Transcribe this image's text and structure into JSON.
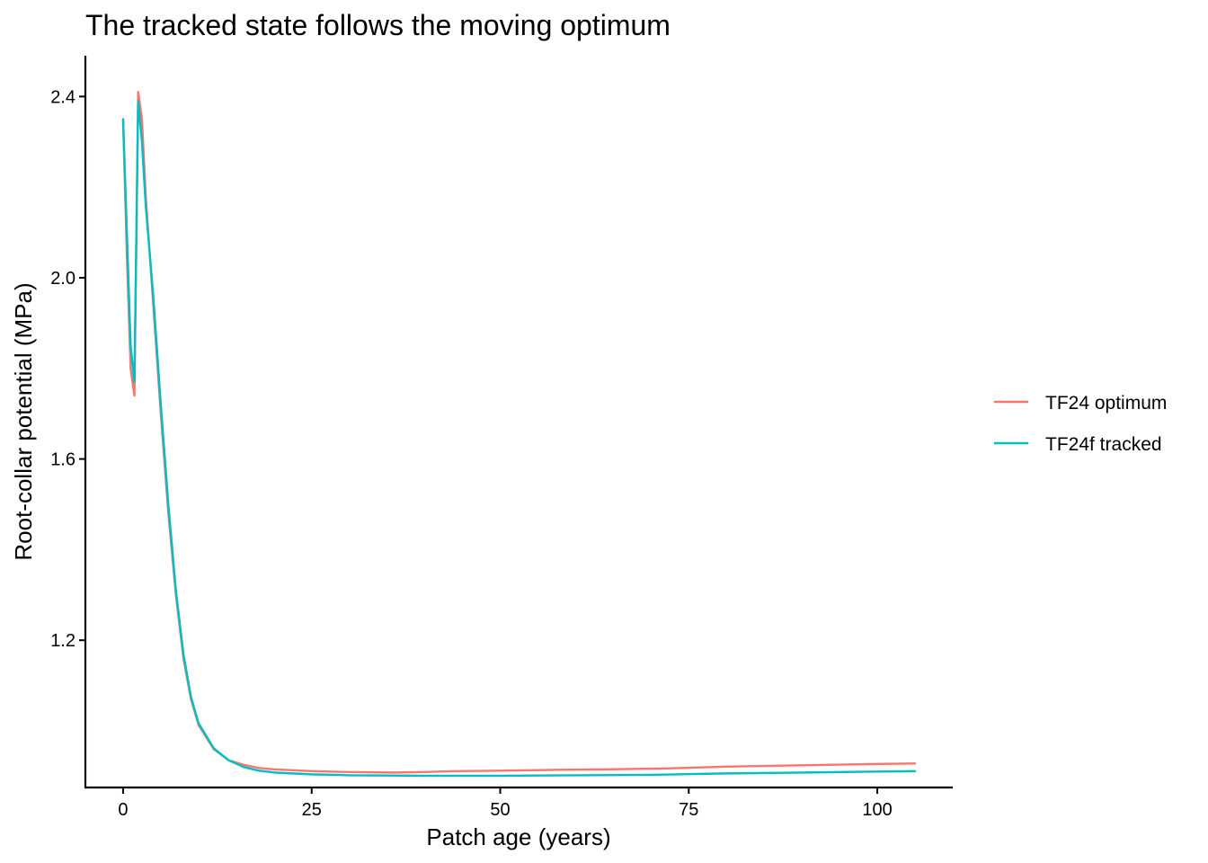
{
  "chart_data": {
    "type": "line",
    "title": "The tracked state follows the moving optimum",
    "xlabel": "Patch age (years)",
    "ylabel": "Root-collar potential (MPa)",
    "xlim": [
      -5,
      110
    ],
    "ylim": [
      0.875,
      2.49
    ],
    "x_ticks": [
      0,
      25,
      50,
      75,
      100
    ],
    "x_tick_labels": [
      "0",
      "25",
      "50",
      "75",
      "100"
    ],
    "y_ticks": [
      1.2,
      1.6,
      2.0,
      2.4
    ],
    "y_tick_labels": [
      "1.2",
      "1.6",
      "2.0",
      "2.4"
    ],
    "grid": false,
    "legend_position": "right",
    "series": [
      {
        "name": "TF24 optimum",
        "color": "#F8766D",
        "x": [
          0,
          0.5,
          1,
          1.5,
          2,
          2.5,
          3,
          4,
          5,
          6,
          7,
          8,
          9,
          10,
          12,
          14,
          16,
          18,
          20,
          25,
          30,
          36,
          40,
          44,
          50,
          58,
          64,
          72,
          80,
          90,
          100,
          105
        ],
        "y": [
          2.35,
          2.05,
          1.8,
          1.74,
          2.41,
          2.35,
          2.18,
          1.94,
          1.7,
          1.48,
          1.3,
          1.16,
          1.07,
          1.013,
          0.96,
          0.935,
          0.925,
          0.918,
          0.915,
          0.911,
          0.909,
          0.908,
          0.909,
          0.911,
          0.912,
          0.914,
          0.915,
          0.917,
          0.921,
          0.924,
          0.927,
          0.928
        ]
      },
      {
        "name": "TF24f tracked",
        "color": "#00BFC4",
        "x": [
          0,
          0.5,
          1,
          1.5,
          2,
          2.5,
          3,
          4,
          5,
          6,
          7,
          8,
          9,
          10,
          12,
          14,
          16,
          18,
          20,
          25,
          30,
          40,
          50,
          60,
          70,
          80,
          90,
          100,
          105
        ],
        "y": [
          2.35,
          2.1,
          1.85,
          1.77,
          2.39,
          2.3,
          2.16,
          1.96,
          1.72,
          1.5,
          1.31,
          1.17,
          1.075,
          1.017,
          0.962,
          0.935,
          0.92,
          0.912,
          0.908,
          0.904,
          0.902,
          0.901,
          0.901,
          0.902,
          0.903,
          0.906,
          0.908,
          0.91,
          0.911
        ]
      }
    ]
  }
}
